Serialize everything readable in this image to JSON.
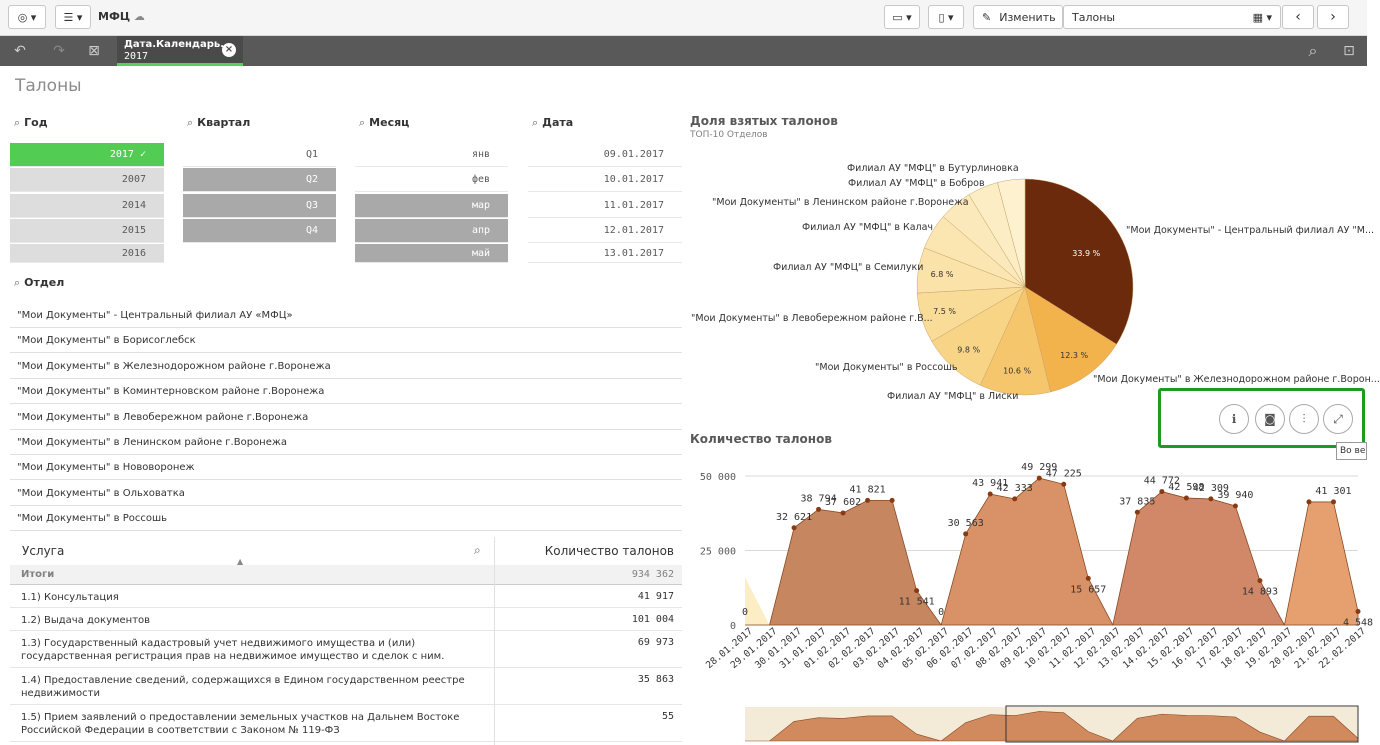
{
  "app": {
    "name": "МФЦ",
    "edit_label": "Изменить",
    "sheet_selector": "Талоны"
  },
  "selection": {
    "field": "Дата.Календарь...",
    "value": "2017"
  },
  "sheet_title": "Талоны",
  "filters": {
    "year": {
      "title": "Год",
      "items": [
        {
          "label": "2017 ✓",
          "state": "sel"
        },
        {
          "label": "2007",
          "state": "alt"
        },
        {
          "label": "2014",
          "state": "alt"
        },
        {
          "label": "2015",
          "state": "alt"
        },
        {
          "label": "2016",
          "state": "alt"
        }
      ]
    },
    "quarter": {
      "title": "Квартал",
      "items": [
        {
          "label": "Q1",
          "state": "pos"
        },
        {
          "label": "Q2",
          "state": "exc"
        },
        {
          "label": "Q3",
          "state": "exc"
        },
        {
          "label": "Q4",
          "state": "exc"
        }
      ]
    },
    "month": {
      "title": "Месяц",
      "items": [
        {
          "label": "янв",
          "state": "pos"
        },
        {
          "label": "фев",
          "state": "pos"
        },
        {
          "label": "мар",
          "state": "exc"
        },
        {
          "label": "апр",
          "state": "exc"
        },
        {
          "label": "май",
          "state": "exc"
        }
      ]
    },
    "date": {
      "title": "Дата",
      "items": [
        {
          "label": "09.01.2017",
          "state": "pos"
        },
        {
          "label": "10.01.2017",
          "state": "pos"
        },
        {
          "label": "11.01.2017",
          "state": "pos"
        },
        {
          "label": "12.01.2017",
          "state": "pos"
        },
        {
          "label": "13.01.2017",
          "state": "pos"
        }
      ]
    }
  },
  "department": {
    "title": "Отдел",
    "items": [
      "\"Мои Документы\" - Центральный филиал АУ «МФЦ»",
      "\"Мои Документы\" в Борисоглебск",
      "\"Мои Документы\" в Железнодорожном районе г.Воронежа",
      "\"Мои Документы\" в Коминтерновском районе г.Воронежа",
      "\"Мои Документы\" в Левобережном районе г.Воронежа",
      "\"Мои Документы\" в Ленинском районе г.Воронежа",
      "\"Мои Документы\" в Нововоронеж",
      "\"Мои Документы\" в Ольховатка",
      "\"Мои Документы\" в Россошь"
    ]
  },
  "table": {
    "col_service": "Услуга",
    "col_count": "Количество талонов",
    "totals_label": "Итоги",
    "totals_value": "934 362",
    "rows": [
      {
        "service": "1.1) Консультация",
        "count": "41 917"
      },
      {
        "service": "1.2) Выдача документов",
        "count": "101 004"
      },
      {
        "service": "1.3) Государственный кадастровый учет недвижимого имущества и (или) государственная регистрация прав на недвижимое имущество и сделок с ним.",
        "count": "69 973"
      },
      {
        "service": "1.4) Предоставление сведений, содержащихся в Едином государственном реестре недвижимости",
        "count": "35 863"
      },
      {
        "service": "1.5) Прием заявлений о предоставлении земельных участков на Дальнем Востоке Российской Федерации в соответствии с Законом № 119-ФЗ",
        "count": "55"
      }
    ]
  },
  "pie": {
    "title": "Доля взятых талонов",
    "subtitle": "ТОП-10 Отделов",
    "labels": [
      "\"Мои Документы\" - Центральный филиал АУ \"М...",
      "\"Мои Документы\" в Железнодорожном районе г.Ворон...",
      "Филиал АУ \"МФЦ\" в Лиски",
      "\"Мои Документы\" в Россошь",
      "\"Мои Документы\" в Левобережном районе г.В...",
      "Филиал АУ \"МФЦ\" в Семилуки",
      "Филиал АУ \"МФЦ\" в Калач",
      "\"Мои Документы\" в Ленинском районе г.Воронежа",
      "Филиал АУ \"МФЦ\" в Бобров",
      "Филиал АУ \"МФЦ\" в Бутурлиновка"
    ],
    "pct_labels": [
      "33.9 %",
      "12.3 %",
      "10.6 %",
      "9.8 %",
      "7.5 %",
      "6.8 %"
    ]
  },
  "hover_buttons": {
    "tooltip": "Во ве"
  },
  "chart_data": [
    {
      "type": "pie",
      "title": "Доля взятых талонов",
      "subtitle": "ТОП-10 Отделов",
      "slices": [
        {
          "label": "\"Мои Документы\" - Центральный филиал АУ \"М...",
          "value": 33.9,
          "color": "#6b2a0c"
        },
        {
          "label": "\"Мои Документы\" в Железнодорожном районе г.Ворон...",
          "value": 12.3,
          "color": "#f2b24c"
        },
        {
          "label": "Филиал АУ \"МФЦ\" в Лиски",
          "value": 10.6,
          "color": "#f6c66c"
        },
        {
          "label": "\"Мои Документы\" в Россошь",
          "value": 9.8,
          "color": "#f8d486"
        },
        {
          "label": "\"Мои Документы\" в Левобережном районе г.В...",
          "value": 7.5,
          "color": "#f9dc98"
        },
        {
          "label": "Филиал АУ \"МФЦ\" в Семилуки",
          "value": 6.8,
          "color": "#fae2a8"
        },
        {
          "label": "Филиал АУ \"МФЦ\" в Калач",
          "value": 5.4,
          "color": "#fbe6b2"
        },
        {
          "label": "\"Мои Документы\" в Ленинском районе г.Воронежа",
          "value": 5.0,
          "color": "#fbe9bb"
        },
        {
          "label": "Филиал АУ \"МФЦ\" в Бобров",
          "value": 4.6,
          "color": "#fcedc4"
        },
        {
          "label": "Филиал АУ \"МФЦ\" в Бутурлиновка",
          "value": 4.1,
          "color": "#fdf1cf"
        }
      ]
    },
    {
      "type": "area",
      "title": "Количество талонов",
      "ylim": [
        0,
        55000
      ],
      "yticks": [
        "50 000",
        "25 000",
        "0"
      ],
      "x": [
        "28.01.2017",
        "29.01.2017",
        "30.01.2017",
        "31.01.2017",
        "01.02.2017",
        "02.02.2017",
        "03.02.2017",
        "04.02.2017",
        "05.02.2017",
        "06.02.2017",
        "07.02.2017",
        "08.02.2017",
        "09.02.2017",
        "10.02.2017",
        "11.02.2017",
        "12.02.2017",
        "13.02.2017",
        "14.02.2017",
        "15.02.2017",
        "16.02.2017",
        "17.02.2017",
        "18.02.2017",
        "19.02.2017",
        "20.02.2017",
        "21.02.2017",
        "22.02.2017"
      ],
      "values": [
        0,
        0,
        32621,
        38794,
        37602,
        41821,
        41821,
        11541,
        0,
        30563,
        43941,
        42333,
        49299,
        47225,
        15657,
        0,
        37835,
        44772,
        42598,
        42309,
        39940,
        14893,
        0,
        41301,
        41301,
        4548
      ],
      "point_labels": [
        "0",
        "",
        "32 621",
        "38 794",
        "37 602",
        "41 821",
        "",
        "11 541",
        "0",
        "30 563",
        "43 941",
        "42 333",
        "49 299",
        "47 225",
        "15 657",
        "",
        "37 835",
        "44 772",
        "42 598",
        "42 309",
        "39 940",
        "14 893",
        "",
        "",
        "41 301",
        "4 548"
      ]
    }
  ]
}
